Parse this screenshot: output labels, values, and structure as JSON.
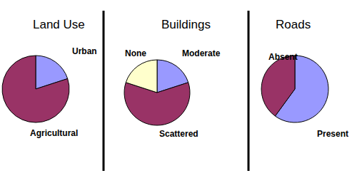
{
  "chart_data": [
    {
      "type": "pie",
      "title": "Land Use",
      "categories": [
        "Urban",
        "Agricultural"
      ],
      "values": [
        20,
        80
      ],
      "colors": [
        "#9999ff",
        "#993366"
      ]
    },
    {
      "type": "pie",
      "title": "Buildings",
      "categories": [
        "Moderate",
        "Scattered",
        "None"
      ],
      "values": [
        20,
        60,
        20
      ],
      "colors": [
        "#9999ff",
        "#993366",
        "#ffffcc"
      ]
    },
    {
      "type": "pie",
      "title": "Roads",
      "categories": [
        "Present",
        "Absent"
      ],
      "values": [
        60,
        40
      ],
      "colors": [
        "#9999ff",
        "#993366"
      ]
    }
  ]
}
